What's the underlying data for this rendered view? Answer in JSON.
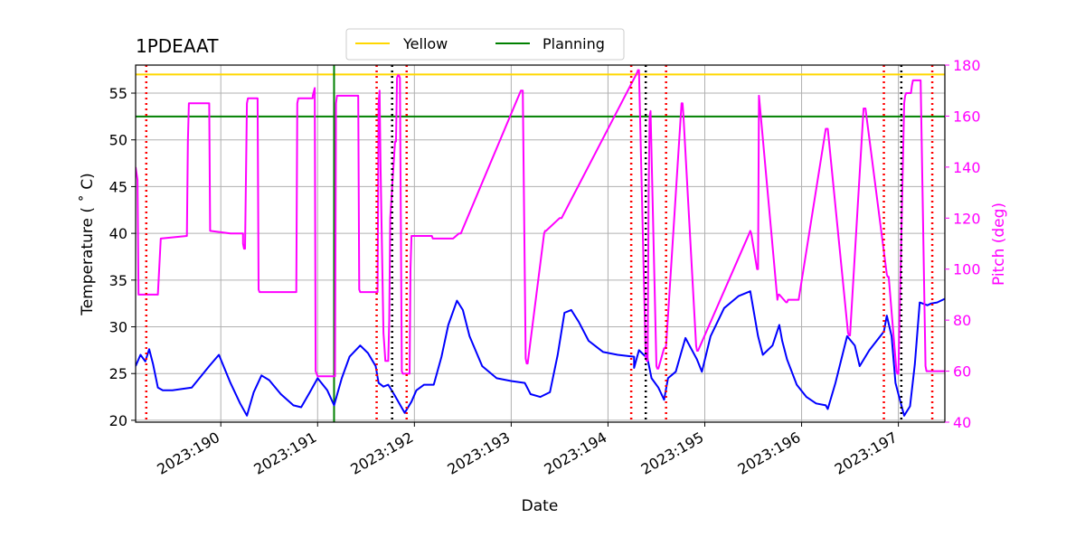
{
  "chart_data": {
    "type": "line",
    "title": "1PDEAAT",
    "xlabel": "Date",
    "ylabel_left": "Temperature ($^\\circ$C)",
    "ylabel_left_display": "Temperature ( ˚ C)",
    "ylabel_right": "Pitch (deg)",
    "xlim": [
      189.12,
      197.48
    ],
    "ylim_left": [
      19.8,
      58.0
    ],
    "ylim_right": [
      40,
      180
    ],
    "xticks": [
      190,
      191,
      192,
      193,
      194,
      195,
      196,
      197
    ],
    "xtick_labels": [
      "2023:190",
      "2023:191",
      "2023:192",
      "2023:193",
      "2023:194",
      "2023:195",
      "2023:196",
      "2023:197"
    ],
    "yticks_left": [
      20,
      25,
      30,
      35,
      40,
      45,
      50,
      55
    ],
    "ytick_labels_left": [
      "20",
      "25",
      "30",
      "35",
      "40",
      "45",
      "50",
      "55"
    ],
    "yticks_right": [
      40,
      60,
      80,
      100,
      120,
      140,
      160,
      180
    ],
    "ytick_labels_right": [
      "40",
      "60",
      "80",
      "100",
      "120",
      "140",
      "160",
      "180"
    ],
    "grid": true,
    "legend": {
      "placement": "top-center-outside",
      "entries": [
        {
          "label": "Yellow",
          "color": "#ffd700"
        },
        {
          "label": "Planning",
          "color": "#008000"
        }
      ]
    },
    "limits": {
      "yellow": 57.0,
      "planning": 52.5,
      "planning_start": 191.17
    },
    "series": [
      {
        "name": "Temperature",
        "axis": "left",
        "color": "#0000ff",
        "x": [
          189.12,
          189.17,
          189.22,
          189.26,
          189.3,
          189.35,
          189.4,
          189.5,
          189.7,
          189.88,
          189.98,
          190.1,
          190.2,
          190.27,
          190.34,
          190.42,
          190.5,
          190.62,
          190.75,
          190.83,
          190.92,
          191.0,
          191.1,
          191.17,
          191.25,
          191.33,
          191.44,
          191.52,
          191.6,
          191.63,
          191.68,
          191.73,
          191.8,
          191.9,
          191.97,
          192.02,
          192.1,
          192.2,
          192.28,
          192.35,
          192.44,
          192.5,
          192.57,
          192.7,
          192.85,
          193.0,
          193.14,
          193.2,
          193.3,
          193.4,
          193.48,
          193.55,
          193.62,
          193.7,
          193.8,
          193.95,
          194.1,
          194.27,
          194.27,
          194.32,
          194.38,
          194.4,
          194.45,
          194.52,
          194.58,
          194.62,
          194.7,
          194.75,
          194.8,
          194.92,
          194.97,
          195.06,
          195.2,
          195.35,
          195.47,
          195.55,
          195.6,
          195.7,
          195.77,
          195.8,
          195.85,
          195.95,
          196.05,
          196.15,
          196.25,
          196.27,
          196.35,
          196.47,
          196.55,
          196.6,
          196.7,
          196.85,
          196.88,
          196.93,
          196.97,
          197.02,
          197.06,
          197.12,
          197.17,
          197.22,
          197.3,
          197.34,
          197.4,
          197.48
        ],
        "y": [
          25.8,
          27.0,
          26.3,
          27.6,
          26.0,
          23.5,
          23.2,
          23.2,
          23.5,
          25.8,
          27.0,
          24.0,
          21.8,
          20.5,
          23.0,
          24.8,
          24.3,
          22.8,
          21.6,
          21.4,
          23.0,
          24.5,
          23.2,
          21.6,
          24.5,
          26.8,
          28.0,
          27.2,
          25.8,
          24.0,
          23.6,
          23.8,
          22.6,
          20.8,
          22.0,
          23.2,
          23.8,
          23.8,
          26.8,
          30.2,
          32.8,
          31.8,
          29.0,
          25.8,
          24.5,
          24.2,
          24.0,
          22.8,
          22.5,
          23.0,
          27.0,
          31.5,
          31.8,
          30.5,
          28.5,
          27.3,
          27.0,
          26.8,
          25.6,
          27.5,
          26.9,
          27.0,
          24.5,
          23.5,
          22.2,
          24.5,
          25.2,
          27.0,
          28.8,
          26.5,
          25.2,
          29.0,
          32.0,
          33.3,
          33.8,
          29.0,
          27.0,
          28.0,
          30.2,
          28.5,
          26.5,
          23.8,
          22.5,
          21.8,
          21.6,
          21.2,
          24.0,
          29.0,
          28.0,
          25.8,
          27.5,
          29.5,
          31.2,
          29.0,
          24.0,
          22.0,
          20.5,
          21.5,
          26.0,
          32.6,
          32.3,
          32.5,
          32.6,
          33.0
        ]
      },
      {
        "name": "Pitch",
        "axis": "right",
        "color": "#ff00ff",
        "x": [
          189.12,
          189.14,
          189.15,
          189.35,
          189.37,
          189.38,
          189.65,
          189.66,
          189.67,
          189.87,
          189.88,
          189.89,
          190.1,
          190.23,
          190.23,
          190.24,
          190.25,
          190.27,
          190.28,
          190.38,
          190.39,
          190.4,
          190.78,
          190.79,
          190.8,
          190.95,
          190.95,
          190.97,
          190.98,
          191.0,
          191.18,
          191.19,
          191.2,
          191.42,
          191.43,
          191.44,
          191.62,
          191.63,
          191.64,
          191.65,
          191.68,
          191.69,
          191.7,
          191.73,
          191.74,
          191.75,
          191.8,
          191.81,
          191.82,
          191.83,
          191.84,
          191.85,
          191.87,
          191.88,
          191.95,
          191.96,
          191.97,
          192.18,
          192.19,
          192.2,
          192.38,
          192.39,
          192.4,
          192.46,
          192.47,
          192.48,
          193.1,
          193.11,
          193.12,
          193.15,
          193.16,
          193.17,
          193.34,
          193.35,
          193.36,
          193.5,
          193.51,
          193.52,
          194.3,
          194.31,
          194.32,
          194.39,
          194.4,
          194.41,
          194.42,
          194.43,
          194.44,
          194.5,
          194.51,
          194.52,
          194.58,
          194.59,
          194.6,
          194.76,
          194.77,
          194.78,
          194.91,
          194.92,
          194.93,
          195.46,
          195.47,
          195.48,
          195.54,
          195.55,
          195.56,
          195.75,
          195.76,
          195.77,
          195.84,
          195.85,
          195.86,
          195.97,
          196.25,
          196.26,
          196.27,
          196.48,
          196.49,
          196.5,
          196.64,
          196.65,
          196.66,
          196.88,
          196.89,
          196.9,
          196.98,
          196.99,
          197.0,
          197.06,
          197.07,
          197.08,
          197.09,
          197.1,
          197.11,
          197.13,
          197.14,
          197.15,
          197.21,
          197.22,
          197.23,
          197.28,
          197.29,
          197.3,
          197.48
        ],
        "y": [
          140,
          135,
          90,
          90,
          105,
          112,
          113,
          150,
          165,
          165,
          165,
          115,
          114,
          114,
          110,
          108,
          108,
          165,
          167,
          167,
          92,
          91,
          91,
          165,
          167,
          167,
          168,
          171,
          60,
          58,
          58,
          165,
          168,
          168,
          92,
          91,
          91,
          165,
          170,
          140,
          75,
          70,
          64,
          64,
          80,
          120,
          150,
          150,
          175,
          176,
          176,
          175,
          60,
          59,
          59,
          100,
          113,
          113,
          112,
          112,
          112,
          112,
          112,
          114,
          114,
          114,
          170,
          170,
          170,
          65,
          63,
          63,
          114,
          115,
          115,
          120,
          120,
          120,
          177,
          178,
          178,
          65,
          64,
          64,
          130,
          160,
          162,
          62,
          61,
          61,
          69,
          69,
          70,
          165,
          165,
          160,
          70,
          68,
          68,
          114,
          115,
          114,
          100,
          100,
          168,
          88,
          90,
          90,
          87,
          87,
          88,
          88,
          155,
          155,
          155,
          75,
          74,
          74,
          163,
          163,
          163,
          98,
          97,
          97,
          60,
          59,
          59,
          165,
          168,
          169,
          169,
          169,
          169,
          169,
          172,
          174,
          174,
          174,
          174,
          62,
          60,
          60,
          60
        ]
      }
    ],
    "vlines": {
      "red_dotted": [
        189.23,
        191.61,
        191.92,
        194.24,
        194.6,
        196.85,
        197.35
      ],
      "black_dotted": [
        191.77,
        194.39,
        197.03
      ]
    }
  }
}
